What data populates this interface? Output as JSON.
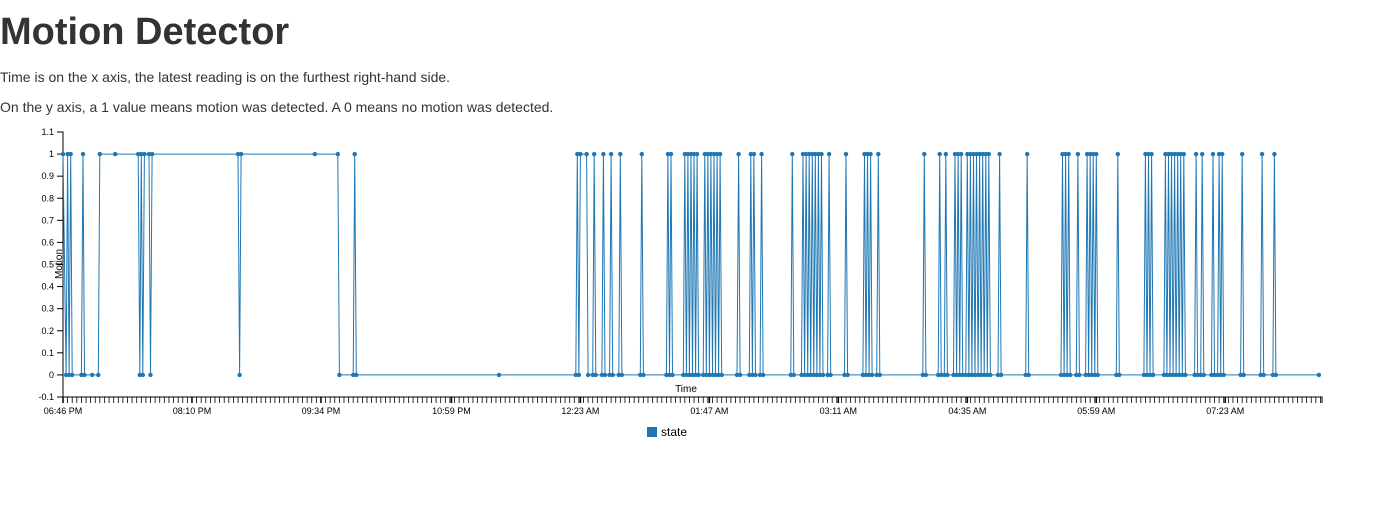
{
  "page": {
    "title": "Motion Detector",
    "description_1": "Time is on the x axis, the latest reading is on the furthest right-hand side.",
    "description_2": "On the y axis, a 1 value means motion was detected. A 0 means no motion was detected."
  },
  "chart_data": {
    "type": "line",
    "title": "",
    "xlabel": "Time",
    "ylabel": "Motion",
    "series_color": "#1f77b4",
    "x_ticks": [
      "06:46 PM",
      "08:10 PM",
      "09:34 PM",
      "10:59 PM",
      "12:23 AM",
      "01:47 AM",
      "03:11 AM",
      "04:35 AM",
      "05:59 AM",
      "07:23 AM"
    ],
    "y_ticks": [
      "-0.1",
      "0",
      "0.1",
      "0.2",
      "0.3",
      "0.4",
      "0.5",
      "0.6",
      "0.7",
      "0.8",
      "0.9",
      "1",
      "1.1"
    ],
    "ylim": [
      -0.1,
      1.1
    ],
    "xlim": [
      "06:46 PM",
      "08:26 AM"
    ],
    "grid": false,
    "legend_position": "bottom-center",
    "series": [
      {
        "name": "state",
        "points": [
          [
            "06:46 PM",
            1
          ],
          [
            "06:48 PM",
            0
          ],
          [
            "06:49 PM",
            1
          ],
          [
            "06:50 PM",
            0
          ],
          [
            "06:51 PM",
            1
          ],
          [
            "06:52 PM",
            0
          ],
          [
            "06:58 PM",
            0
          ],
          [
            "06:59 PM",
            1
          ],
          [
            "07:00 PM",
            0
          ],
          [
            "07:05 PM",
            0
          ],
          [
            "07:09 PM",
            0
          ],
          [
            "07:10 PM",
            1
          ],
          [
            "07:20 PM",
            1
          ],
          [
            "07:35 PM",
            1
          ],
          [
            "07:36 PM",
            0
          ],
          [
            "07:37 PM",
            1
          ],
          [
            "07:38 PM",
            0
          ],
          [
            "07:39 PM",
            1
          ],
          [
            "07:42 PM",
            1
          ],
          [
            "07:43 PM",
            0
          ],
          [
            "07:44 PM",
            1
          ],
          [
            "08:40 PM",
            1
          ],
          [
            "08:41 PM",
            0
          ],
          [
            "08:42 PM",
            1
          ],
          [
            "09:30 PM",
            1
          ],
          [
            "09:45 PM",
            1
          ],
          [
            "09:46 PM",
            0
          ],
          [
            "09:55 PM",
            0
          ],
          [
            "09:56 PM",
            1
          ],
          [
            "09:57 PM",
            0
          ],
          [
            "11:30 PM",
            0
          ],
          [
            "12:20 AM",
            0
          ],
          [
            "12:21 AM",
            1
          ],
          [
            "12:22 AM",
            0
          ],
          [
            "12:23 AM",
            1
          ],
          [
            "12:27 AM",
            1
          ],
          [
            "12:28 AM",
            0
          ],
          [
            "12:31 AM",
            0
          ],
          [
            "12:32 AM",
            1
          ],
          [
            "12:33 AM",
            0
          ],
          [
            "12:37 AM",
            0
          ],
          [
            "12:38 AM",
            1
          ],
          [
            "12:39 AM",
            0
          ],
          [
            "12:42 AM",
            0
          ],
          [
            "12:43 AM",
            1
          ],
          [
            "12:44 AM",
            0
          ],
          [
            "12:48 AM",
            0
          ],
          [
            "12:49 AM",
            1
          ],
          [
            "12:50 AM",
            0
          ],
          [
            "01:02 AM",
            0
          ],
          [
            "01:03 AM",
            1
          ],
          [
            "01:04 AM",
            0
          ],
          [
            "01:19 AM",
            0
          ],
          [
            "01:20 AM",
            1
          ],
          [
            "01:21 AM",
            0
          ],
          [
            "01:22 AM",
            1
          ],
          [
            "01:23 AM",
            0
          ],
          [
            "01:30 AM",
            0
          ],
          [
            "01:31 AM",
            1
          ],
          [
            "01:32 AM",
            0
          ],
          [
            "01:33 AM",
            1
          ],
          [
            "01:34 AM",
            0
          ],
          [
            "01:35 AM",
            1
          ],
          [
            "01:36 AM",
            0
          ],
          [
            "01:37 AM",
            1
          ],
          [
            "01:38 AM",
            0
          ],
          [
            "01:39 AM",
            1
          ],
          [
            "01:40 AM",
            0
          ],
          [
            "01:43 AM",
            0
          ],
          [
            "01:44 AM",
            1
          ],
          [
            "01:45 AM",
            0
          ],
          [
            "01:46 AM",
            1
          ],
          [
            "01:47 AM",
            0
          ],
          [
            "01:48 AM",
            1
          ],
          [
            "01:49 AM",
            0
          ],
          [
            "01:50 AM",
            1
          ],
          [
            "01:51 AM",
            0
          ],
          [
            "01:52 AM",
            1
          ],
          [
            "01:53 AM",
            0
          ],
          [
            "01:54 AM",
            1
          ],
          [
            "01:55 AM",
            0
          ],
          [
            "02:05 AM",
            0
          ],
          [
            "02:06 AM",
            1
          ],
          [
            "02:07 AM",
            0
          ],
          [
            "02:13 AM",
            0
          ],
          [
            "02:14 AM",
            1
          ],
          [
            "02:15 AM",
            0
          ],
          [
            "02:16 AM",
            1
          ],
          [
            "02:17 AM",
            0
          ],
          [
            "02:20 AM",
            0
          ],
          [
            "02:21 AM",
            1
          ],
          [
            "02:22 AM",
            0
          ],
          [
            "02:40 AM",
            0
          ],
          [
            "02:41 AM",
            1
          ],
          [
            "02:42 AM",
            0
          ],
          [
            "02:47 AM",
            0
          ],
          [
            "02:48 AM",
            1
          ],
          [
            "02:49 AM",
            0
          ],
          [
            "02:50 AM",
            1
          ],
          [
            "02:51 AM",
            0
          ],
          [
            "02:52 AM",
            1
          ],
          [
            "02:53 AM",
            0
          ],
          [
            "02:54 AM",
            1
          ],
          [
            "02:55 AM",
            0
          ],
          [
            "02:56 AM",
            1
          ],
          [
            "02:57 AM",
            0
          ],
          [
            "02:58 AM",
            1
          ],
          [
            "02:59 AM",
            0
          ],
          [
            "03:00 AM",
            1
          ],
          [
            "03:01 AM",
            0
          ],
          [
            "03:04 AM",
            0
          ],
          [
            "03:05 AM",
            1
          ],
          [
            "03:06 AM",
            0
          ],
          [
            "03:15 AM",
            0
          ],
          [
            "03:16 AM",
            1
          ],
          [
            "03:17 AM",
            0
          ],
          [
            "03:27 AM",
            0
          ],
          [
            "03:28 AM",
            1
          ],
          [
            "03:29 AM",
            0
          ],
          [
            "03:30 AM",
            1
          ],
          [
            "03:31 AM",
            0
          ],
          [
            "03:32 AM",
            1
          ],
          [
            "03:33 AM",
            0
          ],
          [
            "03:36 AM",
            0
          ],
          [
            "03:37 AM",
            1
          ],
          [
            "03:38 AM",
            0
          ],
          [
            "04:06 AM",
            0
          ],
          [
            "04:07 AM",
            1
          ],
          [
            "04:08 AM",
            0
          ],
          [
            "04:16 AM",
            0
          ],
          [
            "04:17 AM",
            1
          ],
          [
            "04:18 AM",
            0
          ],
          [
            "04:20 AM",
            0
          ],
          [
            "04:21 AM",
            1
          ],
          [
            "04:22 AM",
            0
          ],
          [
            "04:26 AM",
            0
          ],
          [
            "04:27 AM",
            1
          ],
          [
            "04:28 AM",
            0
          ],
          [
            "04:29 AM",
            1
          ],
          [
            "04:30 AM",
            0
          ],
          [
            "04:31 AM",
            1
          ],
          [
            "04:32 AM",
            0
          ],
          [
            "04:34 AM",
            0
          ],
          [
            "04:35 AM",
            1
          ],
          [
            "04:36 AM",
            0
          ],
          [
            "04:37 AM",
            1
          ],
          [
            "04:38 AM",
            0
          ],
          [
            "04:39 AM",
            1
          ],
          [
            "04:40 AM",
            0
          ],
          [
            "04:41 AM",
            1
          ],
          [
            "04:42 AM",
            0
          ],
          [
            "04:43 AM",
            1
          ],
          [
            "04:44 AM",
            0
          ],
          [
            "04:45 AM",
            1
          ],
          [
            "04:46 AM",
            0
          ],
          [
            "04:47 AM",
            1
          ],
          [
            "04:48 AM",
            0
          ],
          [
            "04:49 AM",
            1
          ],
          [
            "04:50 AM",
            0
          ],
          [
            "04:55 AM",
            0
          ],
          [
            "04:56 AM",
            1
          ],
          [
            "04:57 AM",
            0
          ],
          [
            "05:13 AM",
            0
          ],
          [
            "05:14 AM",
            1
          ],
          [
            "05:15 AM",
            0
          ],
          [
            "05:36 AM",
            0
          ],
          [
            "05:37 AM",
            1
          ],
          [
            "05:38 AM",
            0
          ],
          [
            "05:39 AM",
            1
          ],
          [
            "05:40 AM",
            0
          ],
          [
            "05:41 AM",
            1
          ],
          [
            "05:42 AM",
            0
          ],
          [
            "05:46 AM",
            0
          ],
          [
            "05:47 AM",
            1
          ],
          [
            "05:48 AM",
            0
          ],
          [
            "05:52 AM",
            0
          ],
          [
            "05:53 AM",
            1
          ],
          [
            "05:54 AM",
            0
          ],
          [
            "05:55 AM",
            1
          ],
          [
            "05:56 AM",
            0
          ],
          [
            "05:57 AM",
            1
          ],
          [
            "05:58 AM",
            0
          ],
          [
            "05:59 AM",
            1
          ],
          [
            "06:00 AM",
            0
          ],
          [
            "06:12 AM",
            0
          ],
          [
            "06:13 AM",
            1
          ],
          [
            "06:14 AM",
            0
          ],
          [
            "06:30 AM",
            0
          ],
          [
            "06:31 AM",
            1
          ],
          [
            "06:32 AM",
            0
          ],
          [
            "06:33 AM",
            1
          ],
          [
            "06:34 AM",
            0
          ],
          [
            "06:35 AM",
            1
          ],
          [
            "06:36 AM",
            0
          ],
          [
            "06:43 AM",
            0
          ],
          [
            "06:44 AM",
            1
          ],
          [
            "06:45 AM",
            0
          ],
          [
            "06:46 AM",
            1
          ],
          [
            "06:47 AM",
            0
          ],
          [
            "06:48 AM",
            1
          ],
          [
            "06:49 AM",
            0
          ],
          [
            "06:50 AM",
            1
          ],
          [
            "06:51 AM",
            0
          ],
          [
            "06:52 AM",
            1
          ],
          [
            "06:53 AM",
            0
          ],
          [
            "06:54 AM",
            1
          ],
          [
            "06:55 AM",
            0
          ],
          [
            "06:56 AM",
            1
          ],
          [
            "06:57 AM",
            0
          ],
          [
            "07:03 AM",
            0
          ],
          [
            "07:04 AM",
            1
          ],
          [
            "07:05 AM",
            0
          ],
          [
            "07:07 AM",
            0
          ],
          [
            "07:08 AM",
            1
          ],
          [
            "07:09 AM",
            0
          ],
          [
            "07:14 AM",
            0
          ],
          [
            "07:15 AM",
            1
          ],
          [
            "07:16 AM",
            0
          ],
          [
            "07:18 AM",
            0
          ],
          [
            "07:19 AM",
            1
          ],
          [
            "07:20 AM",
            0
          ],
          [
            "07:21 AM",
            1
          ],
          [
            "07:22 AM",
            0
          ],
          [
            "07:33 AM",
            0
          ],
          [
            "07:34 AM",
            1
          ],
          [
            "07:35 AM",
            0
          ],
          [
            "07:46 AM",
            0
          ],
          [
            "07:47 AM",
            1
          ],
          [
            "07:48 AM",
            0
          ],
          [
            "07:54 AM",
            0
          ],
          [
            "07:55 AM",
            1
          ],
          [
            "07:56 AM",
            0
          ],
          [
            "08:24 AM",
            0
          ]
        ]
      }
    ]
  }
}
